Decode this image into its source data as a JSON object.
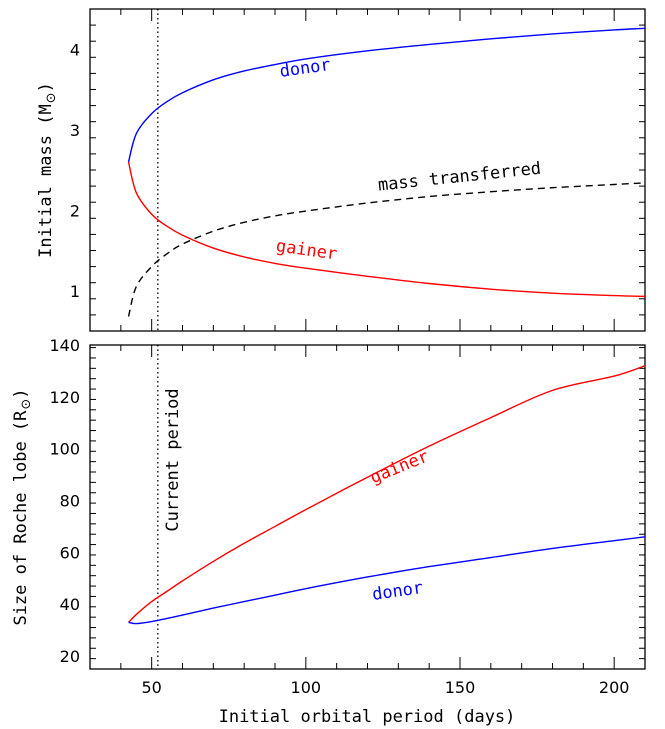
{
  "chart_data": [
    {
      "type": "line",
      "panel": "top",
      "title": "",
      "xlabel": "",
      "ylabel_main": "Initial mass (M",
      "ylabel_close": ")",
      "ylabel_symbol": "sun",
      "xlim": [
        30,
        210
      ],
      "ylim": [
        0.5,
        4.5
      ],
      "x_ticks": [
        50,
        100,
        150,
        200
      ],
      "y_ticks": [
        1,
        2,
        3,
        4
      ],
      "y_tick_labels": [
        "1",
        "2",
        "3",
        "4"
      ],
      "vline": {
        "x": 52,
        "style": "dotted"
      },
      "series": [
        {
          "name": "donor",
          "color": "#0000ff",
          "style": "solid",
          "x": [
            42.5,
            45,
            50,
            55,
            60,
            70,
            80,
            90,
            100,
            120,
            140,
            160,
            180,
            200,
            210
          ],
          "y": [
            2.6,
            2.95,
            3.2,
            3.35,
            3.46,
            3.62,
            3.73,
            3.81,
            3.88,
            3.98,
            4.06,
            4.13,
            4.19,
            4.24,
            4.26
          ]
        },
        {
          "name": "gainer",
          "color": "#ff0000",
          "style": "solid",
          "x": [
            42.5,
            45,
            50,
            55,
            60,
            70,
            80,
            90,
            100,
            120,
            140,
            160,
            180,
            200,
            210
          ],
          "y": [
            2.6,
            2.22,
            1.95,
            1.8,
            1.69,
            1.53,
            1.42,
            1.34,
            1.28,
            1.18,
            1.09,
            1.02,
            0.97,
            0.94,
            0.93
          ]
        },
        {
          "name": "mass transferred",
          "color": "#000000",
          "style": "dashed",
          "x": [
            42.5,
            45,
            50,
            55,
            60,
            70,
            80,
            90,
            100,
            120,
            140,
            160,
            180,
            200,
            210
          ],
          "y": [
            0.68,
            1.05,
            1.3,
            1.46,
            1.58,
            1.74,
            1.85,
            1.93,
            1.99,
            2.09,
            2.17,
            2.23,
            2.28,
            2.32,
            2.34
          ]
        }
      ],
      "annotations": [
        {
          "text": "donor",
          "x": 100,
          "y": 3.7,
          "angle": -8,
          "color": "#0000ff"
        },
        {
          "text": "mass transferred",
          "x": 150,
          "y": 2.35,
          "angle": -6,
          "color": "#000000"
        },
        {
          "text": "gainer",
          "x": 100,
          "y": 1.44,
          "angle": 8,
          "color": "#ff0000"
        }
      ]
    },
    {
      "type": "line",
      "panel": "bottom",
      "title": "",
      "xlabel": "Initial orbital period (days)",
      "ylabel_main": "Size of Roche lobe (R",
      "ylabel_close": ")",
      "ylabel_symbol": "sun",
      "xlim": [
        30,
        210
      ],
      "ylim": [
        15,
        140
      ],
      "x_ticks": [
        50,
        100,
        150,
        200
      ],
      "x_tick_labels": [
        "50",
        "100",
        "150",
        "200"
      ],
      "y_ticks": [
        20,
        40,
        60,
        80,
        100,
        120,
        140
      ],
      "y_tick_labels": [
        "20",
        "40",
        "60",
        "80",
        "100",
        "120",
        "140"
      ],
      "vline": {
        "x": 52,
        "style": "dotted",
        "label": "Current period"
      },
      "series": [
        {
          "name": "gainer",
          "color": "#ff0000",
          "style": "solid",
          "x": [
            42.5,
            45,
            50,
            55,
            60,
            70,
            80,
            90,
            100,
            120,
            140,
            160,
            180,
            200,
            210
          ],
          "y": [
            33,
            36,
            41,
            45,
            49,
            56.5,
            63.5,
            70,
            76.5,
            89,
            101,
            112,
            122.5,
            128,
            132
          ]
        },
        {
          "name": "donor",
          "color": "#0000ff",
          "style": "solid",
          "x": [
            42.5,
            44,
            46,
            50,
            55,
            60,
            70,
            80,
            90,
            100,
            120,
            140,
            160,
            180,
            200,
            210
          ],
          "y": [
            33,
            32.6,
            32.6,
            33.3,
            34.5,
            35.8,
            38.5,
            41,
            43.5,
            46,
            50.5,
            54.5,
            58,
            61.5,
            64.5,
            66
          ]
        }
      ],
      "annotations": [
        {
          "text": "gainer",
          "x": 131,
          "y": 91,
          "angle": -22,
          "color": "#ff0000"
        },
        {
          "text": "donor",
          "x": 130,
          "y": 43,
          "angle": -8,
          "color": "#0000ff"
        }
      ]
    }
  ]
}
